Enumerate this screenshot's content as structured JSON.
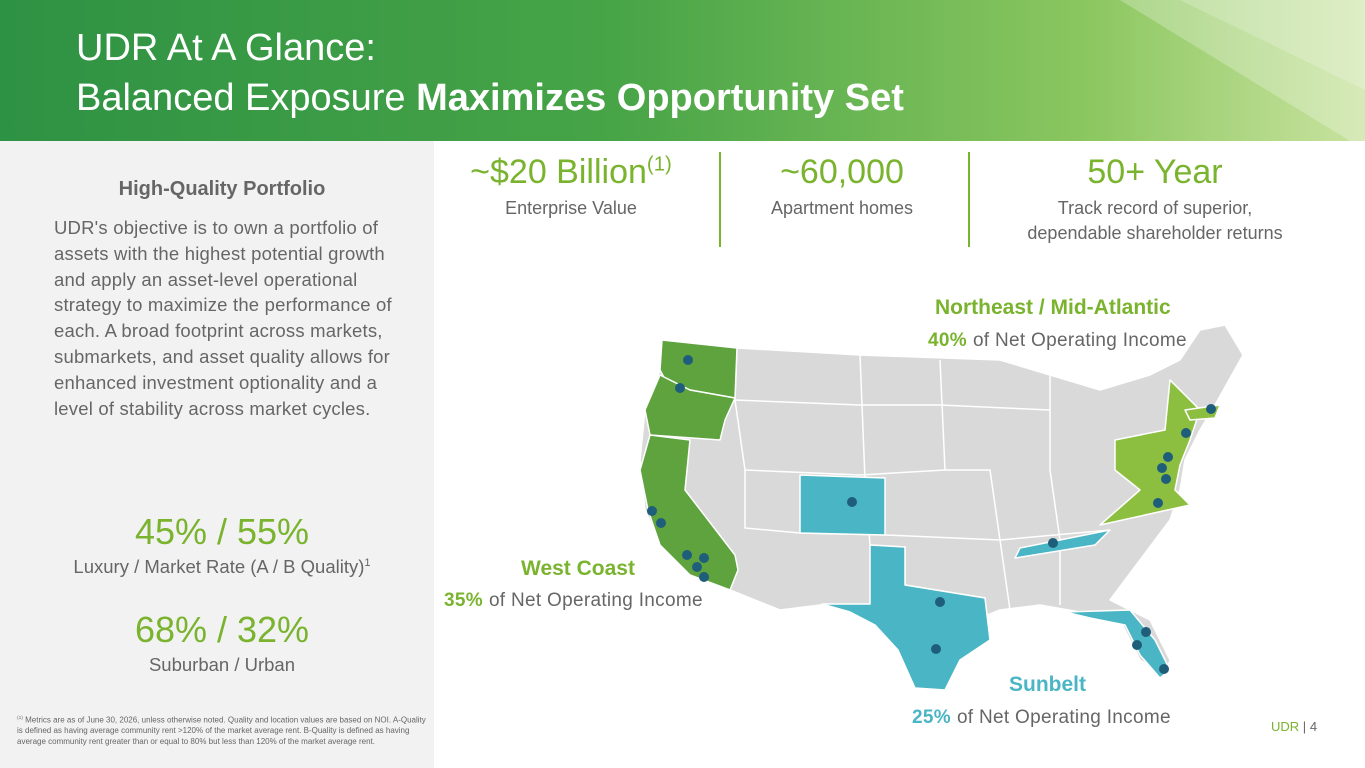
{
  "header": {
    "title_line1": "UDR At A Glance:",
    "title_line2_regular": "Balanced Exposure",
    "title_line2_bold": "Maximizes Opportunity Set"
  },
  "left_panel": {
    "heading": "High-Quality Portfolio",
    "body": "UDR's objective is to own a portfolio of assets with the highest potential growth and apply an asset-level operational strategy to maximize the performance of each. A broad footprint across markets, submarkets, and asset quality allows for enhanced investment optionality and a level of stability across market cycles.",
    "stats": [
      {
        "value": "45% / 55%",
        "label": "Luxury / Market Rate (A / B Quality)",
        "footnote_ref": "1"
      },
      {
        "value": "68% / 32%",
        "label": "Suburban / Urban"
      }
    ],
    "footnote": {
      "ref": "(1)",
      "text": "Metrics are as of June 30, 2026, unless otherwise noted. Quality and location values are based on NOI. A-Quality is defined as having average community rent >120% of the market average rent. B-Quality is defined as having average community rent greater than or equal to 80% but less than 120% of the market average rent."
    }
  },
  "metrics": [
    {
      "value": "~$20 Billion",
      "footnote_ref": "(1)",
      "label_lines": [
        "Enterprise Value"
      ]
    },
    {
      "value": "~60,000",
      "label_lines": [
        "Apartment homes"
      ]
    },
    {
      "value": "50+ Year",
      "label_lines": [
        "Track record of superior,",
        "dependable shareholder returns"
      ]
    }
  ],
  "regions": [
    {
      "name": "Northeast / Mid-Atlantic",
      "share": "40%",
      "description": "of Net Operating Income"
    },
    {
      "name": "West Coast",
      "share": "35%",
      "description": "of Net Operating Income"
    },
    {
      "name": "Sunbelt",
      "share": "25%",
      "description": "of Net Operating Income"
    }
  ],
  "footer": {
    "brand": "UDR",
    "separator": "|",
    "page": "4"
  }
}
